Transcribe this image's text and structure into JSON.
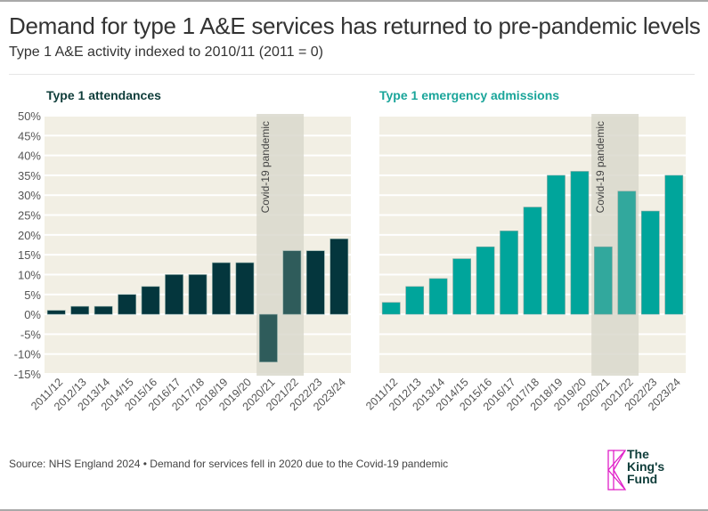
{
  "header": {
    "title": "Demand for type 1 A&E services has returned to pre-pandemic levels",
    "subtitle": "Type 1 A&E activity indexed to 2010/11 (2011 = 0)"
  },
  "footer": {
    "source": "Source: NHS England 2024 • Demand for services fell in 2020 due to the Covid-19 pandemic",
    "logo_lines": [
      "The",
      "King's",
      "Fund"
    ]
  },
  "colors": {
    "attendances": "#04363d",
    "attendances_covid": "#2f5c5b",
    "admissions": "#00a59b",
    "admissions_covid": "#32a89d",
    "plot_bg": "#f2efe4",
    "covid_band": "#d9d8cd",
    "logo_accent": "#e020c8"
  },
  "chart_data": [
    {
      "type": "bar",
      "title": "Type 1 attendances",
      "xlabel": "",
      "ylabel": "",
      "categories": [
        "2011/12",
        "2012/13",
        "2013/14",
        "2014/15",
        "2015/16",
        "2016/17",
        "2017/18",
        "2018/19",
        "2019/20",
        "2020/21",
        "2021/22",
        "2022/23",
        "2023/24"
      ],
      "values": [
        1,
        2,
        2,
        5,
        7,
        10,
        10,
        13,
        13,
        -12,
        16,
        16,
        19
      ],
      "ylim": [
        -15,
        50
      ],
      "yticks": [
        50,
        45,
        40,
        35,
        30,
        25,
        20,
        15,
        10,
        5,
        0,
        -5,
        -10,
        -15
      ],
      "ytick_labels": [
        "50%",
        "45%",
        "40%",
        "35%",
        "30%",
        "25%",
        "20%",
        "15%",
        "10%",
        "5%",
        "0%",
        "-5%",
        "-10%",
        "-15%"
      ],
      "show_y_labels": true,
      "grid": true,
      "annotation": {
        "label": "Covid-19 pandemic",
        "span": [
          "2020/21",
          "2021/22"
        ]
      },
      "highlighted_categories": [
        "2020/21",
        "2021/22"
      ]
    },
    {
      "type": "bar",
      "title": "Type 1 emergency admissions",
      "xlabel": "",
      "ylabel": "",
      "categories": [
        "2011/12",
        "2012/13",
        "2013/14",
        "2014/15",
        "2015/16",
        "2016/17",
        "2017/18",
        "2018/19",
        "2019/20",
        "2020/21",
        "2021/22",
        "2022/23",
        "2023/24"
      ],
      "values": [
        3,
        7,
        9,
        14,
        17,
        21,
        27,
        35,
        36,
        17,
        31,
        26,
        35
      ],
      "ylim": [
        -15,
        50
      ],
      "yticks": [
        50,
        45,
        40,
        35,
        30,
        25,
        20,
        15,
        10,
        5,
        0,
        -5,
        -10,
        -15
      ],
      "show_y_labels": false,
      "grid": true,
      "annotation": {
        "label": "Covid-19 pandemic",
        "span": [
          "2020/21",
          "2021/22"
        ]
      },
      "highlighted_categories": [
        "2020/21",
        "2021/22"
      ]
    }
  ]
}
